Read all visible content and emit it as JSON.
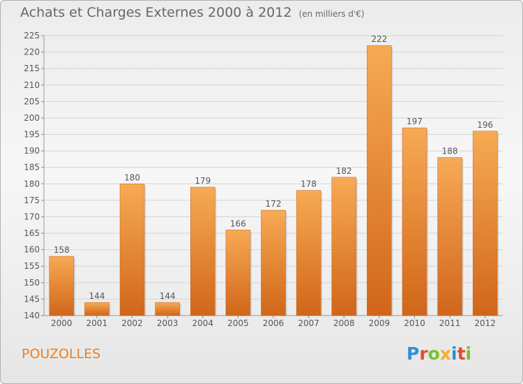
{
  "title": "Achats et Charges Externes 2000 à 2012",
  "subtitle": "(en milliers d'€)",
  "commune": "POUZOLLES",
  "logo_letters": [
    "P",
    "r",
    "o",
    "x",
    "i",
    "t",
    "i"
  ],
  "colors": {
    "bar_top": "#f4a64f",
    "bar_bottom": "#d36b1a",
    "commune": "#ee7f22"
  },
  "chart_data": {
    "type": "bar",
    "categories": [
      "2000",
      "2001",
      "2002",
      "2003",
      "2004",
      "2005",
      "2006",
      "2007",
      "2008",
      "2009",
      "2010",
      "2011",
      "2012"
    ],
    "values": [
      158,
      144,
      180,
      144,
      179,
      166,
      172,
      178,
      182,
      222,
      197,
      188,
      196
    ],
    "ylim": [
      140,
      225
    ],
    "yticks": [
      140,
      145,
      150,
      155,
      160,
      165,
      170,
      175,
      180,
      185,
      190,
      195,
      200,
      205,
      210,
      215,
      220,
      225
    ],
    "grid": true,
    "xlabel": "",
    "ylabel": ""
  }
}
